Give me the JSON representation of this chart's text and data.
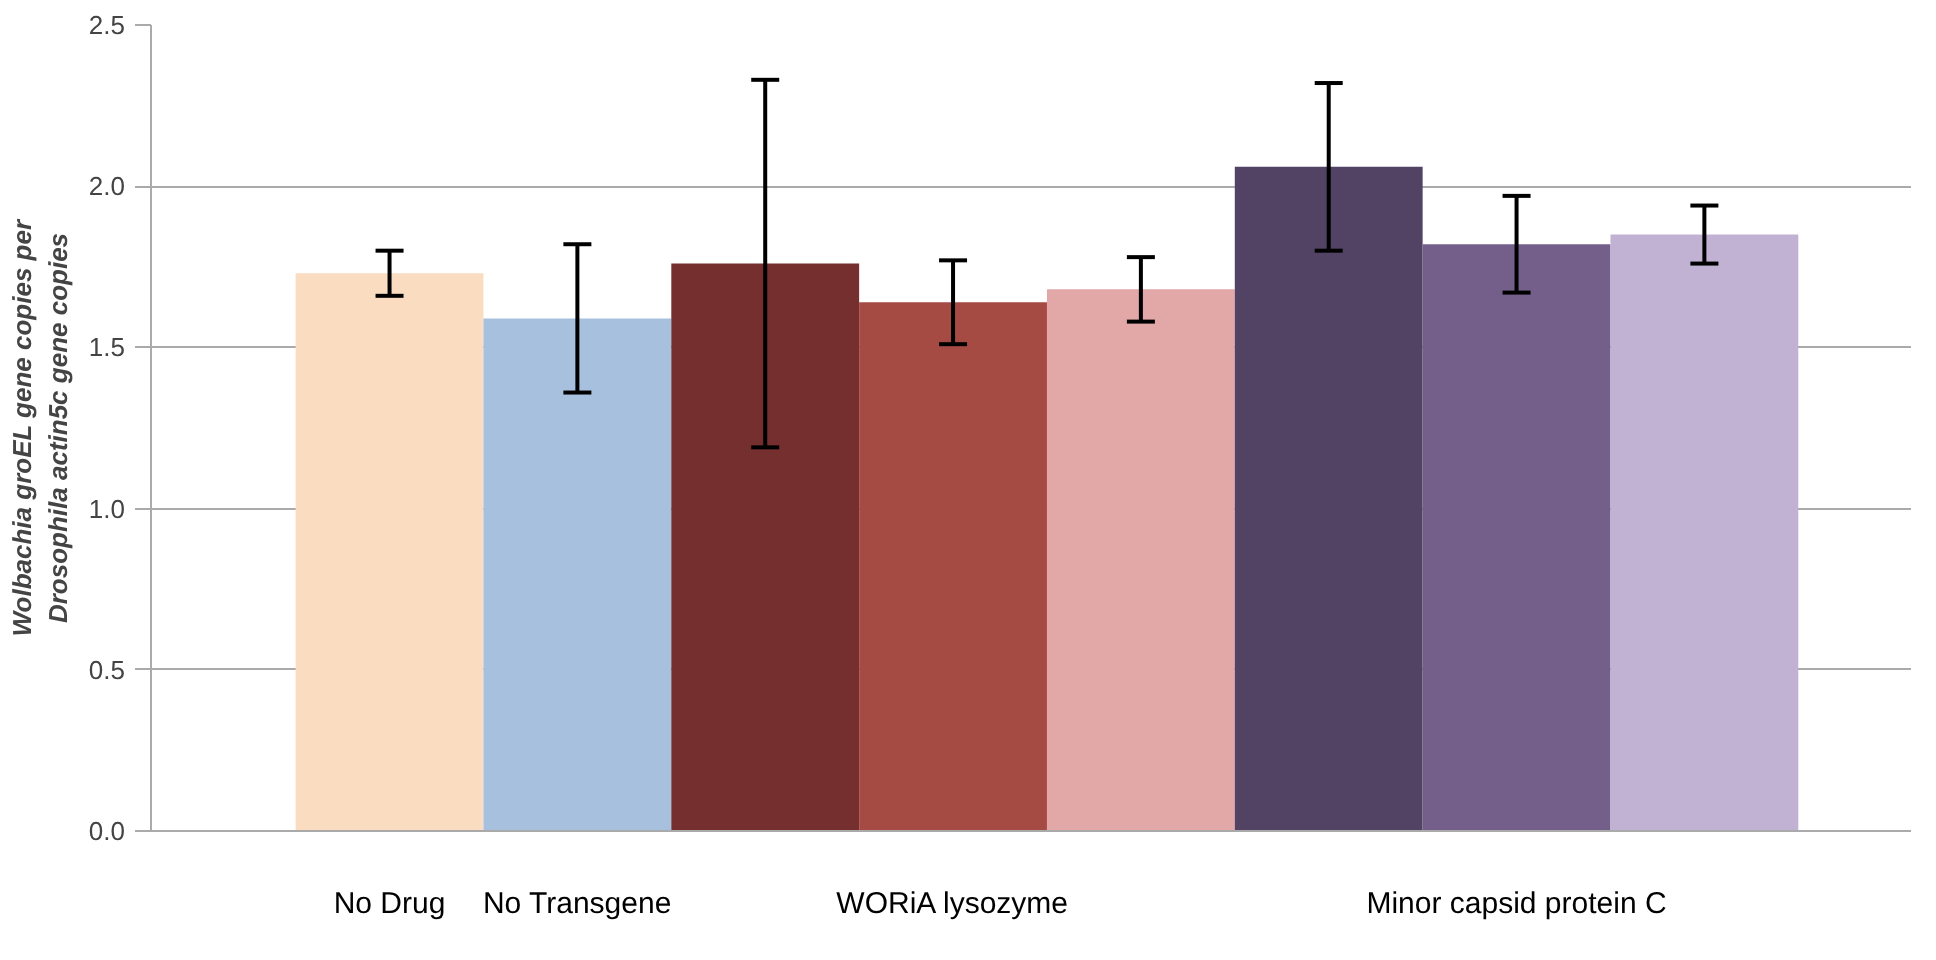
{
  "chart_data": {
    "type": "bar",
    "ylabel": "Wolbachia groEL gene copies per\nDrosophila actin5c gene copies",
    "categories": [
      "No Drug",
      "No Transgene",
      null,
      "WORiA lysozyme",
      null,
      null,
      "Minor capsid protein C",
      null
    ],
    "values": [
      1.73,
      1.59,
      1.76,
      1.64,
      1.68,
      2.06,
      1.82,
      1.85
    ],
    "errors": [
      0.07,
      0.23,
      0.57,
      0.13,
      0.1,
      0.26,
      0.15,
      0.09
    ],
    "colors": [
      "#fadcc0",
      "#a6c0de",
      "#762f2f",
      "#a54b44",
      "#e1a8a7",
      "#524264",
      "#745f8b",
      "#c1b1d3"
    ],
    "ylim": [
      0,
      2.5
    ],
    "yticks": [
      {
        "value": 0,
        "label": "0.0"
      },
      {
        "value": 0.5,
        "label": "0.5"
      },
      {
        "value": 1,
        "label": "1.0"
      },
      {
        "value": 1.5,
        "label": "1.5"
      },
      {
        "value": 2,
        "label": "2.0"
      },
      {
        "value": 2.5,
        "label": "2.5"
      }
    ],
    "grid": "y"
  }
}
